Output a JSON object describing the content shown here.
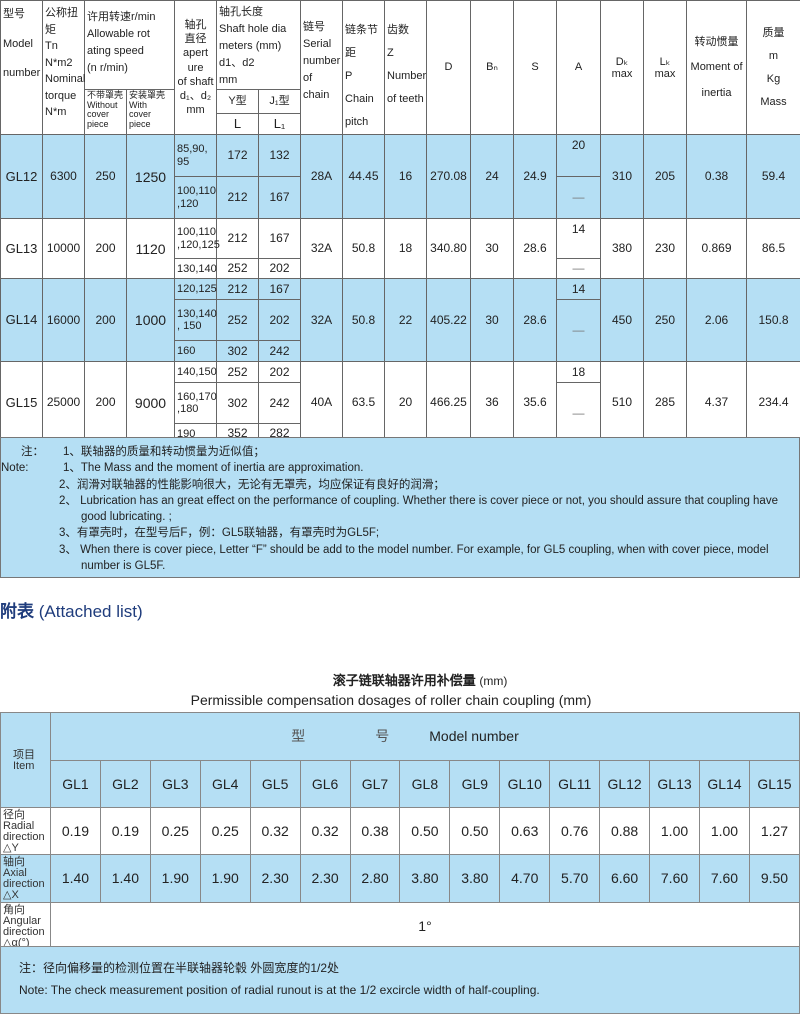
{
  "main_table": {
    "headers": {
      "model": "型号\n\nModel\n\nnumber",
      "torque": "公称扭矩\n  Tn\nN*m2\nNominal\ntorque\nN*m",
      "speed": "许用转速r/min\nAllowable rot\nating speed\n(n  r/min)",
      "speed_without": "不带罩壳\nWithout\ncover\npiece",
      "speed_with": "安装罩壳\nWith\ncover\npiece",
      "aperture": "轴孔\n直径\napert\nure\nof shaft\nd₁、d₂\nmm",
      "shaft_length": "轴孔长度\nShaft hole dia\nmeters (mm)\nd1、d2\nmm",
      "y_type": "Y型",
      "j_type": "J₁型",
      "l": "L",
      "l1": "L₁",
      "chain": "链号\nSerial\nnumber\nof\nchain",
      "pitch": "链条节距\n P\nChain\npitch",
      "teeth": "齿数\n Z\nNumber\nof teeth",
      "d": "D",
      "b": "Bₙ",
      "s": "S",
      "a": "A",
      "dk": "Dₖ\nmax",
      "lk": "Lₖ\nmax",
      "inertia": "转动惯量\n\nMoment of\n\ninertia",
      "mass": "质量\nm\nKg\nMass"
    },
    "rows": [
      {
        "model": "GL12",
        "torque": "6300",
        "speed_without": "250",
        "speed_with": "1250",
        "sub": [
          {
            "d": "85,90,\n95",
            "L": "172",
            "L1": "132"
          },
          {
            "d": "100,110\n,120",
            "L": "212",
            "L1": "167"
          }
        ],
        "chain": "28A",
        "pitch": "44.45",
        "teeth": "16",
        "D": "270.08",
        "B": "24",
        "S": "24.9",
        "A": [
          "20",
          "—"
        ],
        "Dk": "310",
        "Lk": "205",
        "inertia": "0.38",
        "mass": "59.4"
      },
      {
        "model": "GL13",
        "torque": "10000",
        "speed_without": "200",
        "speed_with": "1120",
        "sub": [
          {
            "d": "100,110\n,120,125",
            "L": "212",
            "L1": "167"
          },
          {
            "d": "130,140",
            "L": "252",
            "L1": "202"
          }
        ],
        "chain": "32A",
        "pitch": "50.8",
        "teeth": "18",
        "D": "340.80",
        "B": "30",
        "S": "28.6",
        "A": [
          "14",
          "—"
        ],
        "Dk": "380",
        "Lk": "230",
        "inertia": "0.869",
        "mass": "86.5"
      },
      {
        "model": "GL14",
        "torque": "16000",
        "speed_without": "200",
        "speed_with": "1000",
        "sub": [
          {
            "d": "120,125",
            "L": "212",
            "L1": "167"
          },
          {
            "d": "130,140\n, 150",
            "L": "252",
            "L1": "202"
          },
          {
            "d": "160",
            "L": "302",
            "L1": "242"
          }
        ],
        "chain": "32A",
        "pitch": "50.8",
        "teeth": "22",
        "D": "405.22",
        "B": "30",
        "S": "28.6",
        "A": [
          "14",
          "—"
        ],
        "Dk": "450",
        "Lk": "250",
        "inertia": "2.06",
        "mass": "150.8"
      },
      {
        "model": "GL15",
        "torque": "25000",
        "speed_without": "200",
        "speed_with": "9000",
        "sub": [
          {
            "d": "140,150",
            "L": "252",
            "L1": "202"
          },
          {
            "d": "160,170\n,180",
            "L": "302",
            "L1": "242"
          },
          {
            "d": "190",
            "L": "352",
            "L1": "282"
          }
        ],
        "chain": "40A",
        "pitch": "63.5",
        "teeth": "20",
        "D": "466.25",
        "B": "36",
        "S": "35.6",
        "A": [
          "18",
          "—"
        ],
        "Dk": "510",
        "Lk": "285",
        "inertia": "4.37",
        "mass": "234.4"
      }
    ]
  },
  "notes": {
    "label_cn": "注：",
    "label_en": "Note:",
    "n1_cn": "1、联轴器的质量和转动惯量为近似值；",
    "n1_en": "1、The Mass and the moment of inertia are approximation.",
    "n2_cn": "2、润滑对联轴器的性能影响很大，无论有无罩壳，均应保证有良好的润滑；",
    "n2_en": "2、 Lubrication has an great effect on the performance of coupling. Whether there is cover piece or not, you should assure that coupling have good lubricating. ;",
    "n3_cn": "3、有罩壳时，在型号后F，例：GL5联轴器，有罩壳时为GL5F;",
    "n3_en": "3、 When there is cover piece, Letter “F” should be add to the model number. For example, for GL5 coupling, when with cover piece, model number is GL5F."
  },
  "attached": {
    "cn": "附表",
    "en": "(Attached list)"
  },
  "comp_table": {
    "title_cn": "滚子链联轴器许用补偿量",
    "title_unit": "(mm)",
    "subtitle": "Permissible compensation dosages of roller chain coupling (mm)",
    "item_header": "项目\nItem",
    "model_header_cn1": "型",
    "model_header_cn2": "号",
    "model_header_en": "Model number",
    "models": [
      "GL1",
      "GL2",
      "GL3",
      "GL4",
      "GL5",
      "GL6",
      "GL7",
      "GL8",
      "GL9",
      "GL10",
      "GL11",
      "GL12",
      "GL13",
      "GL14",
      "GL15"
    ],
    "rows": [
      {
        "label": "径向\nRadial\ndirection\n△Y",
        "values": [
          "0.19",
          "0.19",
          "0.25",
          "0.25",
          "0.32",
          "0.32",
          "0.38",
          "0.50",
          "0.50",
          "0.63",
          "0.76",
          "0.88",
          "1.00",
          "1.00",
          "1.27"
        ]
      },
      {
        "label": "轴向\nAxial\ndirection\n△X",
        "values": [
          "1.40",
          "1.40",
          "1.90",
          "1.90",
          "2.30",
          "2.30",
          "2.80",
          "3.80",
          "3.80",
          "4.70",
          "5.70",
          "6.60",
          "7.60",
          "7.60",
          "9.50"
        ]
      }
    ],
    "angular_label": "角向\nAngular\ndirection\n△α(°)",
    "angular_value": "1°",
    "note_cn": "注：径向偏移量的检测位置在半联轴器轮毂 外圆宽度的1/2处",
    "note_en": "Note: The check measurement position of radial runout is at the 1/2 excircle width of half-coupling."
  },
  "colors": {
    "row_blue": "#b5dff4",
    "heading_blue": "#1f3c7c",
    "border": "#666666"
  }
}
